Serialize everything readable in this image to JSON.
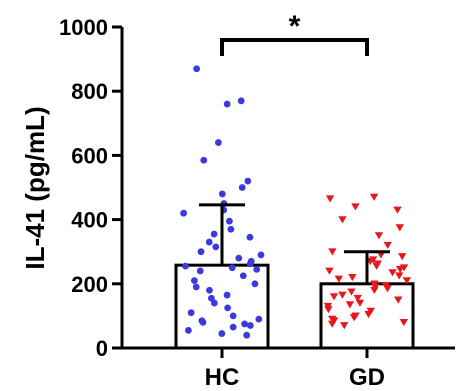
{
  "chart_data": {
    "type": "bar",
    "categories": [
      "HC",
      "GD"
    ],
    "ylabel": "IL-41 (pg/mL)",
    "xlabel": "",
    "ylim": [
      0,
      1000
    ],
    "yticks": [
      "0",
      "200",
      "400",
      "600",
      "800",
      "1000"
    ],
    "grid": false,
    "bars": [
      {
        "category": "HC",
        "mean": 258,
        "sd": 188,
        "bar_fill": "#ffffff",
        "marker": "circle",
        "marker_color": "#3a3adf",
        "points": [
          870,
          770,
          760,
          640,
          585,
          520,
          500,
          480,
          450,
          430,
          420,
          395,
          370,
          355,
          345,
          330,
          315,
          300,
          290,
          280,
          270,
          262,
          255,
          250,
          245,
          240,
          225,
          210,
          200,
          190,
          180,
          165,
          155,
          140,
          125,
          110,
          100,
          90,
          85,
          80,
          75,
          70,
          65,
          55,
          45,
          40
        ]
      },
      {
        "category": "GD",
        "mean": 200,
        "sd": 100,
        "bar_fill": "#ffffff",
        "marker": "triangle-down",
        "marker_color": "#e8171b",
        "points": [
          470,
          465,
          440,
          430,
          400,
          375,
          350,
          320,
          300,
          290,
          285,
          275,
          270,
          262,
          255,
          250,
          245,
          240,
          235,
          225,
          220,
          215,
          210,
          200,
          195,
          190,
          185,
          180,
          175,
          165,
          160,
          155,
          150,
          140,
          135,
          130,
          120,
          115,
          105,
          100,
          95,
          90,
          85,
          80,
          75,
          70
        ]
      }
    ],
    "significance": {
      "between": [
        "HC",
        "GD"
      ],
      "label": "*"
    }
  }
}
